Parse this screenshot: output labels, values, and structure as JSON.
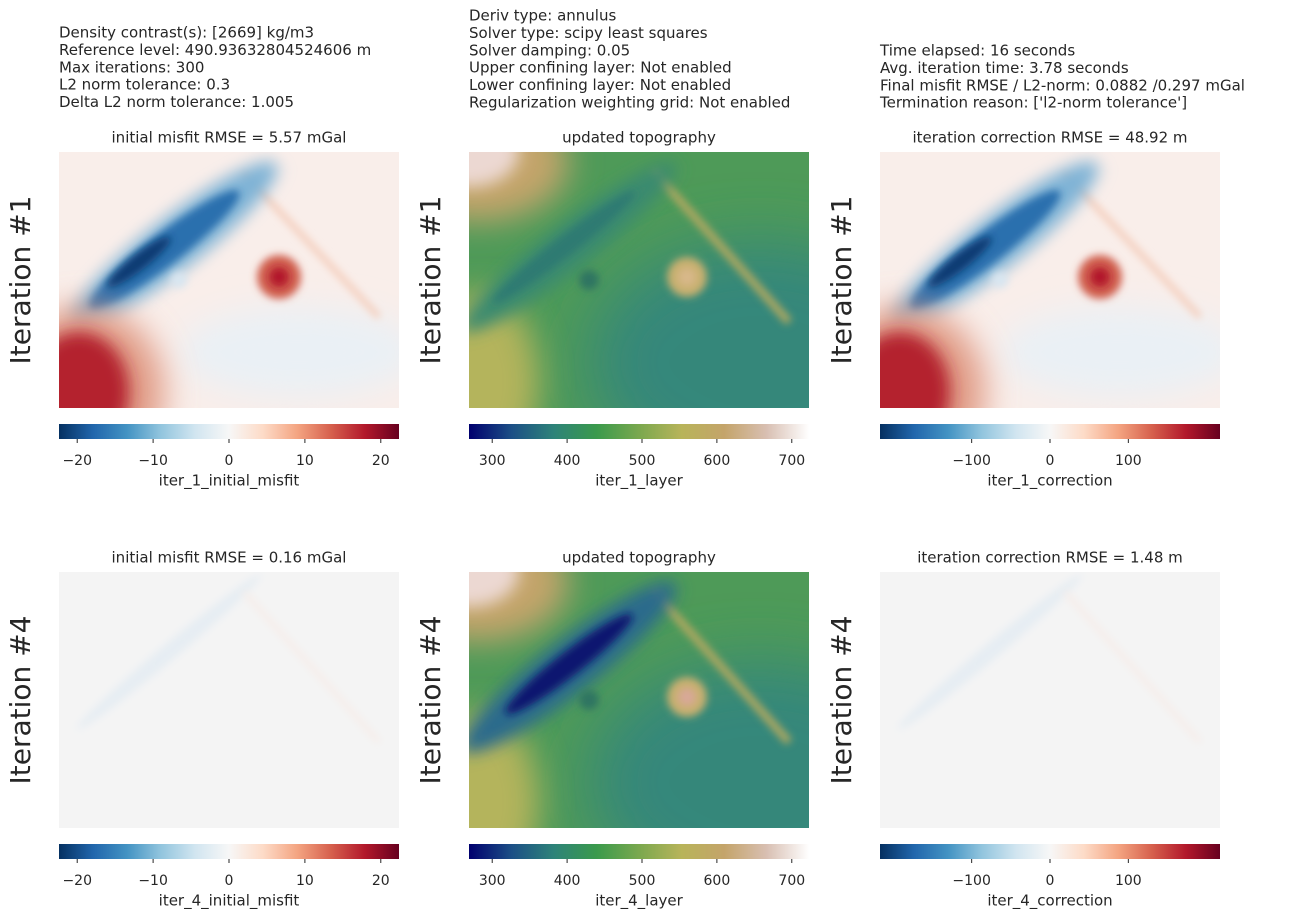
{
  "header": {
    "columns": [
      [
        "Density contrast(s): [2669] kg/m3",
        "Reference level: 490.93632804524606 m",
        "Max iterations: 300",
        "L2 norm tolerance: 0.3",
        "Delta L2 norm tolerance: 1.005"
      ],
      [
        "Deriv type: annulus",
        "Solver type: scipy least squares",
        "Solver damping: 0.05",
        "Upper confining layer: Not enabled",
        "Lower confining layer: Not enabled",
        "Regularization weighting grid: Not enabled"
      ],
      [
        "Time elapsed: 16 seconds",
        "Avg. iteration time: 3.78 seconds",
        "Final misfit RMSE / L2-norm: 0.0882 /0.297 mGal",
        "Termination reason: ['l2-norm tolerance']"
      ]
    ]
  },
  "colormaps": {
    "misfit": [
      "#053061",
      "#2166ac",
      "#4393c3",
      "#92c5de",
      "#d1e5f0",
      "#f7f7f7",
      "#fddbc7",
      "#f4a582",
      "#d6604d",
      "#b2182b",
      "#67001f"
    ],
    "topo": [
      "#00006e",
      "#1c4f86",
      "#2e8379",
      "#3a9a4c",
      "#7aa84e",
      "#b8b45a",
      "#c4a46a",
      "#d8bfb2",
      "#ffffff"
    ]
  },
  "panels": [
    {
      "title": "initial misfit RMSE = 5.57 mGal",
      "ylabel": "Iteration #1",
      "colormap": "misfit",
      "cbar_label": "iter_1_initial_misfit",
      "clim": [
        -22.4,
        22.4
      ],
      "cticks": [
        {
          "value": -20,
          "label": "−20"
        },
        {
          "value": -10,
          "label": "−10"
        },
        0,
        10,
        20
      ]
    },
    {
      "title": "updated topography",
      "ylabel": "Iteration #1",
      "colormap": "topo",
      "cbar_label": "iter_1_layer",
      "clim": [
        269,
        723
      ],
      "cticks": [
        300,
        400,
        500,
        600,
        700
      ]
    },
    {
      "title": "iteration correction RMSE = 48.92 m",
      "ylabel": "Iteration #1",
      "colormap": "misfit",
      "cbar_label": "iter_1_correction",
      "clim": [
        -217,
        217
      ],
      "cticks": [
        {
          "value": -100,
          "label": "−100"
        },
        0,
        100
      ]
    },
    {
      "title": "initial misfit RMSE = 0.16 mGal",
      "ylabel": "Iteration #4",
      "colormap": "misfit",
      "cbar_label": "iter_4_initial_misfit",
      "clim": [
        -22.4,
        22.4
      ],
      "cticks": [
        {
          "value": -20,
          "label": "−20"
        },
        {
          "value": -10,
          "label": "−10"
        },
        0,
        10,
        20
      ]
    },
    {
      "title": "updated topography",
      "ylabel": "Iteration #4",
      "colormap": "topo",
      "cbar_label": "iter_4_layer",
      "clim": [
        269,
        723
      ],
      "cticks": [
        300,
        400,
        500,
        600,
        700
      ]
    },
    {
      "title": "iteration correction RMSE = 1.48 m",
      "ylabel": "Iteration #4",
      "colormap": "misfit",
      "cbar_label": "iter_4_correction",
      "clim": [
        -217,
        217
      ],
      "cticks": [
        {
          "value": -100,
          "label": "−100"
        },
        0,
        100
      ]
    }
  ]
}
